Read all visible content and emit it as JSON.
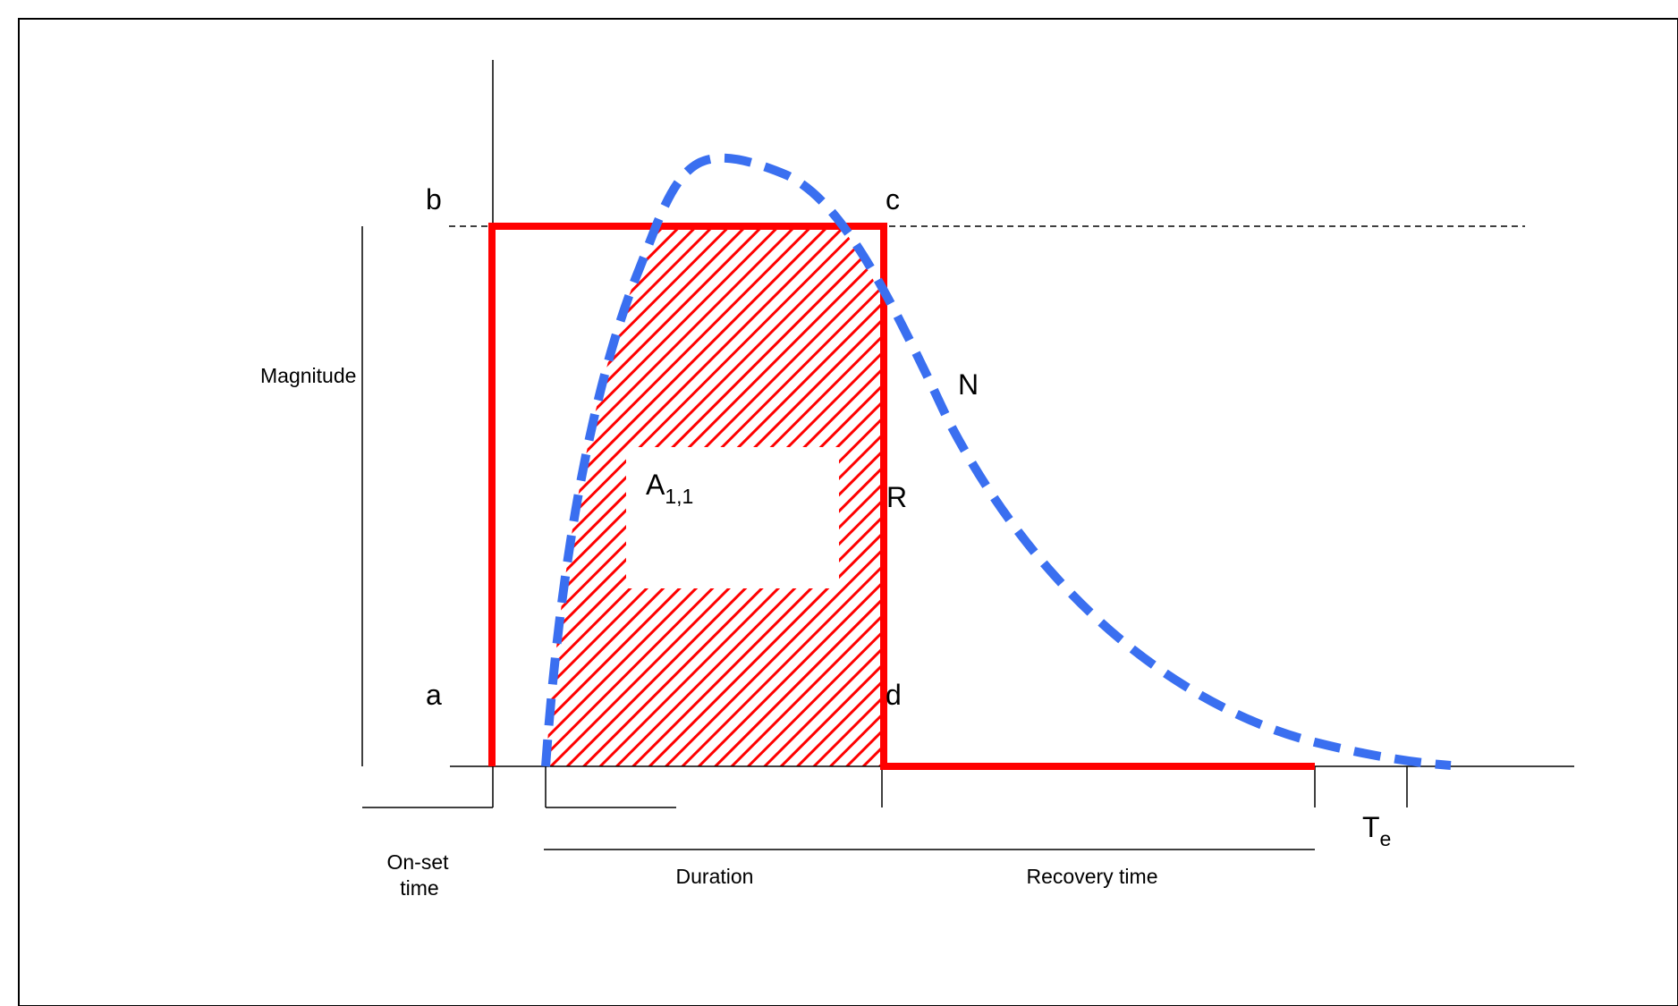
{
  "labels": {
    "b": "b",
    "c": "c",
    "a": "a",
    "d": "d",
    "R": "R",
    "N": "N",
    "area_main": "A",
    "area_sub": "1,1",
    "te_main": "T",
    "te_sub": "e",
    "magnitude": "Magnitude",
    "onset_line1": "On-set",
    "onset_line2": "time",
    "duration": "Duration",
    "recovery": "Recovery time"
  },
  "colors": {
    "resistance_curve": "#ff0000",
    "natural_curve": "#3a6ff0",
    "hatch": "#ff0000",
    "axes": "#000000"
  }
}
